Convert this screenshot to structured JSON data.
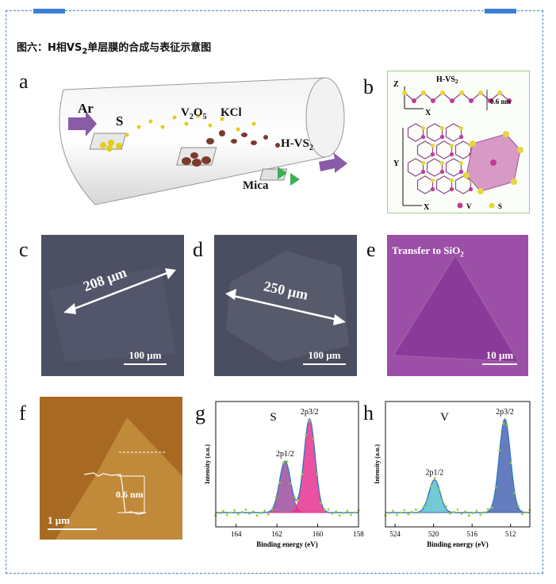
{
  "caption": {
    "prefix": "图六：H相VS",
    "sub": "2",
    "suffix": "单层膜的合成与表征示意图"
  },
  "panels": {
    "a": {
      "letter": "a",
      "labels": {
        "ar": "Ar",
        "s": "S",
        "v2o5_main": "V",
        "v2o5_sub1": "2",
        "v2o5_o": "O",
        "v2o5_sub2": "5",
        "kcl": "KCl",
        "hvs2_main": "H-VS",
        "hvs2_sub": "2",
        "mica": "Mica"
      }
    },
    "b": {
      "letter": "b",
      "labels": {
        "title": "H-VS",
        "title_sub": "2",
        "thickness": "0.6 nm",
        "z": "Z",
        "x_top": "X",
        "y": "Y",
        "x_bottom": "X",
        "legend_v": "V",
        "legend_s": "S"
      }
    },
    "c": {
      "letter": "c",
      "measure": "208 μm",
      "scale": "100 μm"
    },
    "d": {
      "letter": "d",
      "measure": "250 μm",
      "scale": "100 μm"
    },
    "e": {
      "letter": "e",
      "label_main": "Transfer to SiO",
      "label_sub": "2",
      "scale": "10 μm"
    },
    "f": {
      "letter": "f",
      "height": "0.6 nm",
      "scale": "1 μm"
    },
    "g": {
      "letter": "g"
    },
    "h": {
      "letter": "h"
    }
  },
  "chart_data": [
    {
      "type": "line",
      "panel": "g",
      "element": "S",
      "xlabel": "Binding energy (eV)",
      "ylabel": "Intensity (a.u.)",
      "x_ticks": [
        164,
        162,
        160,
        158
      ],
      "xlim": [
        165,
        158
      ],
      "peaks": [
        {
          "label": "2p1/2",
          "x": 161.6,
          "height": 0.55,
          "color": "#9c4f9e"
        },
        {
          "label": "2p3/2",
          "x": 160.4,
          "height": 1.0,
          "color": "#e6338f"
        }
      ]
    },
    {
      "type": "line",
      "panel": "h",
      "element": "V",
      "xlabel": "Binding energy (eV)",
      "ylabel": "Intensity (a.u.)",
      "x_ticks": [
        524,
        520,
        516,
        512
      ],
      "xlim": [
        525,
        510
      ],
      "peaks": [
        {
          "label": "2p1/2",
          "x": 519.9,
          "height": 0.35,
          "color": "#5bbfcf"
        },
        {
          "label": "2p3/2",
          "x": 512.6,
          "height": 1.0,
          "color": "#4a66b3"
        }
      ]
    }
  ]
}
